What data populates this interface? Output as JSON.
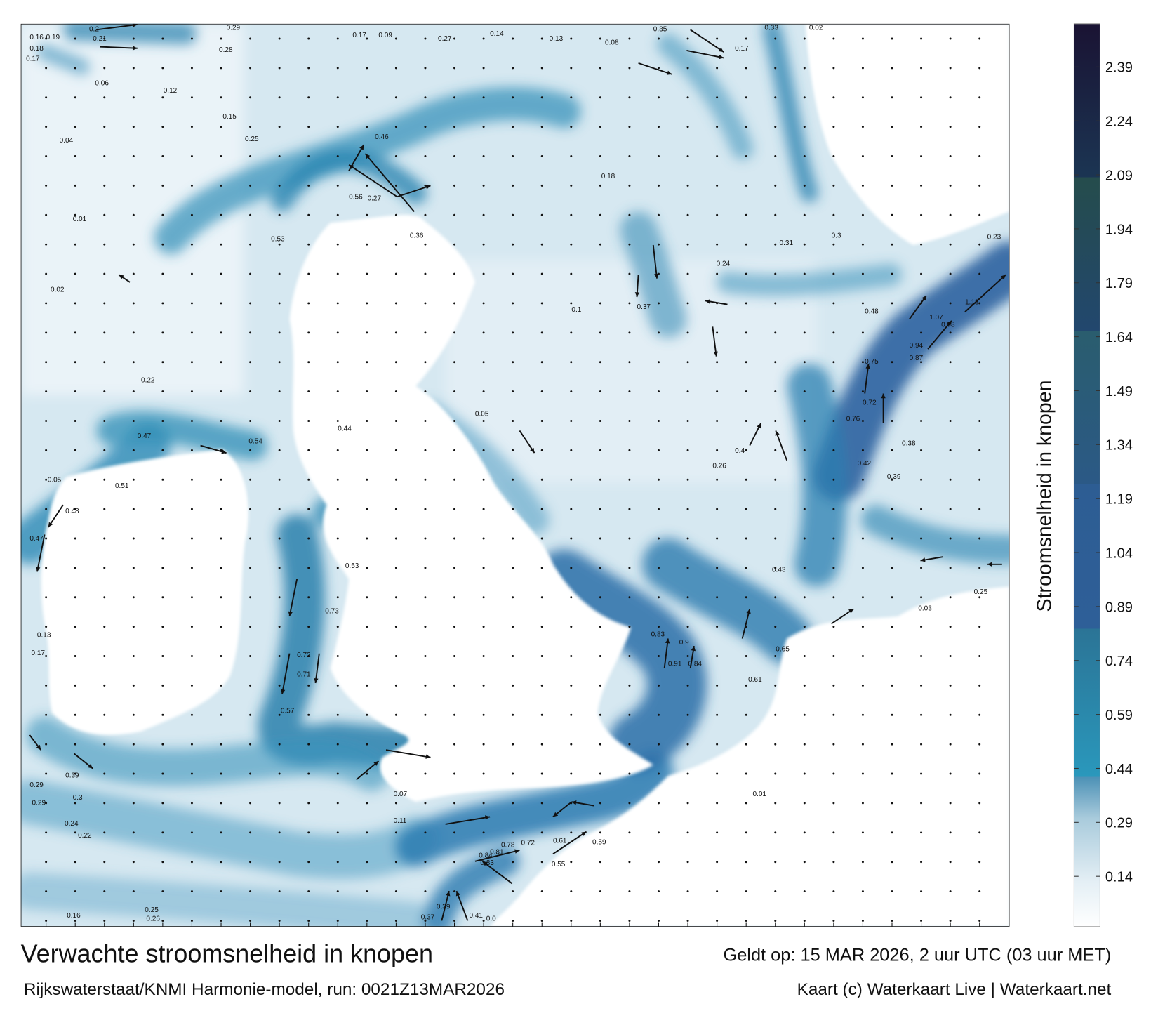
{
  "map": {
    "title": "Verwachte stroomsnelheid in knopen",
    "valid_time": "Geldt op: 15 MAR 2026, 2 uur UTC (03 uur MET)",
    "model_run": "Rijkswaterstaat/KNMI Harmonie-model, run: 0021Z13MAR2026",
    "credit": "Kaart (c) Waterkaart Live | Waterkaart.net",
    "units": "knopen"
  },
  "colorbar": {
    "label": "Stroomsnelheid in knopen",
    "range": [
      0,
      2.51
    ],
    "ticks": [
      "2.39",
      "2.24",
      "2.09",
      "1.94",
      "1.79",
      "1.64",
      "1.49",
      "1.34",
      "1.19",
      "1.04",
      "0.89",
      "0.74",
      "0.59",
      "0.44",
      "0.29",
      "0.14"
    ],
    "colors": {
      "low": "#ffffff",
      "mid": "#2a98bc",
      "high": "#2e5f98",
      "max": "#1a1333"
    }
  },
  "speed_labels": [
    "0.16",
    "0.19",
    "0.18",
    "0.17",
    "0.2",
    "0.21",
    "0.29",
    "0.28",
    "0.17",
    "0.09",
    "0.14",
    "0.27",
    "0.13",
    "0.08",
    "0.35",
    "0.17",
    "0.33",
    "0.02",
    "0.46",
    "0.56",
    "0.27",
    "0.53",
    "0.36",
    "0.24",
    "0.37",
    "0.48",
    "1.07",
    "0.78",
    "1.13",
    "0.94",
    "0.87",
    "0.75",
    "0.72",
    "0.76",
    "0.42",
    "0.39",
    "0.44",
    "0.54",
    "0.47",
    "0.51",
    "0.48",
    "0.47",
    "0.53",
    "0.73",
    "0.71",
    "0.72",
    "0.57",
    "0.83",
    "0.91",
    "0.84",
    "0.9",
    "0.65",
    "0.61",
    "0.81",
    "0.84",
    "0.83",
    "0.78",
    "0.72",
    "0.61",
    "0.55",
    "0.59",
    "0.41",
    "0.39",
    "0.37",
    "0.16",
    "0.25",
    "0.26",
    "0.24",
    "0.22",
    "0.29",
    "0.29",
    "0.3",
    "0.39",
    "0.13",
    "0.17",
    "0.05",
    "0.02",
    "0.01",
    "0.04",
    "0.06",
    "0.23",
    "0.25",
    "0.03",
    "0.07",
    "0.11",
    "0.01",
    "0.15",
    "0.12",
    "0.22",
    "0.3",
    "0.31",
    "0.4",
    "0.26",
    "0.38",
    "0.43",
    "0.25",
    "0.18",
    "0.1",
    "0.05",
    "0.0"
  ]
}
